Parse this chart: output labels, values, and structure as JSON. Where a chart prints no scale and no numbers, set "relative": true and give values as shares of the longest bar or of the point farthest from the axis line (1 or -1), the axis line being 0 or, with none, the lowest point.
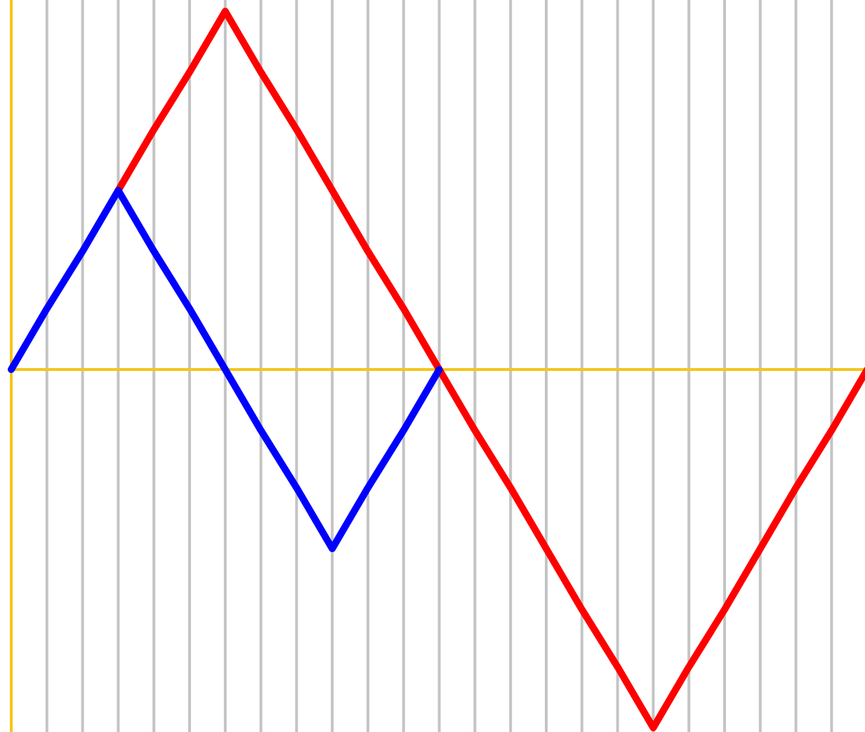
{
  "chart_data": {
    "type": "line",
    "relative": true,
    "grid": "x",
    "ref_lines": [
      {
        "axis": "y",
        "value": 0,
        "color": "#f5c518"
      }
    ],
    "marker": "none",
    "line_style": "solid",
    "categories": [
      null,
      null,
      null,
      null,
      null,
      null,
      null,
      null,
      null,
      null,
      null,
      null,
      null,
      null,
      null,
      null,
      null,
      null,
      null,
      null,
      null,
      null,
      null,
      null,
      null
    ],
    "series": [
      {
        "color": "#ff0000",
        "values": [
          null,
          null,
          null,
          0.5,
          0.67,
          0.83,
          1,
          0.83,
          0.67,
          0.5,
          0.33,
          0.17,
          0,
          -0.17,
          -0.33,
          -0.5,
          -0.67,
          -0.83,
          -1,
          -0.83,
          -0.67,
          -0.5,
          -0.33,
          -0.17,
          0
        ]
      },
      {
        "color": "#0000ff",
        "values": [
          0,
          0.17,
          0.33,
          0.5,
          0.33,
          0.17,
          0,
          -0.17,
          -0.33,
          -0.5,
          -0.33,
          -0.17,
          0,
          null,
          null,
          null,
          null,
          null,
          null,
          null,
          null,
          null,
          null,
          null,
          null
        ]
      }
    ]
  }
}
